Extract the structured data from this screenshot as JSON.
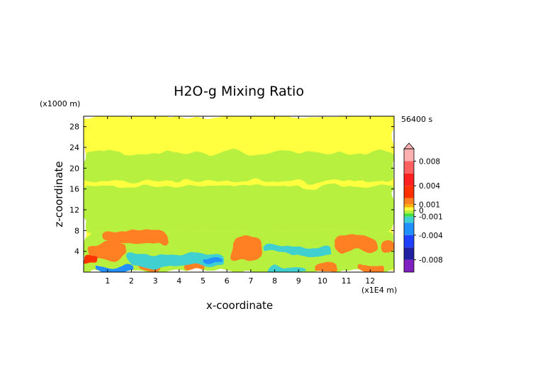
{
  "chart_data": {
    "type": "heatmap",
    "title": "H2O-g Mixing Ratio",
    "xlabel": "x-coordinate",
    "ylabel": "z-coordinate",
    "x_unit": "(x1E4 m)",
    "y_unit": "(x1000 m)",
    "time_label": "56400 s",
    "xlim": [
      0,
      13
    ],
    "ylim": [
      0,
      30
    ],
    "x_ticks": [
      "1",
      "2",
      "3",
      "4",
      "5",
      "6",
      "7",
      "8",
      "9",
      "10",
      "11",
      "12"
    ],
    "y_ticks": [
      "4",
      "8",
      "12",
      "16",
      "20",
      "24",
      "28"
    ],
    "colorbar": {
      "labels": [
        {
          "text": "0.008",
          "value": 0.008
        },
        {
          "text": "0.004",
          "value": 0.004
        },
        {
          "text": "0.001",
          "value": 0.001
        },
        {
          "text": "0",
          "value": 0.0
        },
        {
          "text": "-0.001",
          "value": -0.001
        },
        {
          "text": "-0.004",
          "value": -0.004
        },
        {
          "text": "-0.008",
          "value": -0.008
        }
      ],
      "range": [
        -0.01,
        0.01
      ],
      "stops": [
        {
          "value": 0.01,
          "color": "#ffb0b0"
        },
        {
          "value": 0.008,
          "color": "#ff6060"
        },
        {
          "value": 0.006,
          "color": "#ff2020"
        },
        {
          "value": 0.004,
          "color": "#ff3000"
        },
        {
          "value": 0.002,
          "color": "#ff8020"
        },
        {
          "value": 0.001,
          "color": "#ffb000"
        },
        {
          "value": 0.0005,
          "color": "#ffff40"
        },
        {
          "value": 0.0,
          "color": "#b8f040"
        },
        {
          "value": -0.0005,
          "color": "#40e040"
        },
        {
          "value": -0.001,
          "color": "#40d0d0"
        },
        {
          "value": -0.002,
          "color": "#2090ff"
        },
        {
          "value": -0.004,
          "color": "#2040ff"
        },
        {
          "value": -0.006,
          "color": "#2020a0"
        },
        {
          "value": -0.008,
          "color": "#8020c0"
        },
        {
          "value": -0.01,
          "color": "#ff20c0"
        }
      ]
    },
    "regions": [
      {
        "level": "near-zero-positive",
        "x": [
          0,
          13
        ],
        "z": [
          0,
          30
        ],
        "color": "#ffff40"
      },
      {
        "level": "slightly-negative",
        "x": [
          0,
          13
        ],
        "z": [
          17.5,
          23
        ],
        "color": "#b8f040"
      },
      {
        "level": "slightly-negative",
        "x": [
          0,
          13
        ],
        "z": [
          8,
          16.5
        ],
        "color": "#b8f040"
      },
      {
        "level": "slightly-negative",
        "x": [
          0,
          13
        ],
        "z": [
          0,
          8
        ],
        "color": "#b8f040"
      },
      {
        "level": "positive",
        "x": [
          0.8,
          3.6
        ],
        "z": [
          5.5,
          8
        ],
        "color": "#ff8020"
      },
      {
        "level": "positive",
        "x": [
          0.2,
          1.8
        ],
        "z": [
          2.5,
          5.5
        ],
        "color": "#ff8020"
      },
      {
        "level": "positive",
        "x": [
          6.2,
          7.4
        ],
        "z": [
          2.5,
          7
        ],
        "color": "#ff8020"
      },
      {
        "level": "positive",
        "x": [
          2.2,
          3.2
        ],
        "z": [
          0.3,
          3
        ],
        "color": "#ff8020"
      },
      {
        "level": "positive",
        "x": [
          10.6,
          12.2
        ],
        "z": [
          4,
          7
        ],
        "color": "#ff8020"
      },
      {
        "level": "positive",
        "x": [
          12.4,
          13
        ],
        "z": [
          3.5,
          6
        ],
        "color": "#ff8020"
      },
      {
        "level": "negative",
        "x": [
          1.8,
          5.9
        ],
        "z": [
          1,
          3.5
        ],
        "color": "#40d0d0"
      },
      {
        "level": "negative",
        "x": [
          7.5,
          10.4
        ],
        "z": [
          3.5,
          5
        ],
        "color": "#40d0d0"
      },
      {
        "level": "negative",
        "x": [
          0.5,
          2
        ],
        "z": [
          0,
          1.2
        ],
        "color": "#2090ff"
      },
      {
        "level": "negative",
        "x": [
          5,
          5.8
        ],
        "z": [
          1.8,
          2.8
        ],
        "color": "#2090ff"
      },
      {
        "level": "positive",
        "x": [
          0,
          0.6
        ],
        "z": [
          1.5,
          3
        ],
        "color": "#ff3000"
      },
      {
        "level": "positive",
        "x": [
          4.2,
          5.1
        ],
        "z": [
          0,
          1.2
        ],
        "color": "#ff8020"
      },
      {
        "level": "positive",
        "x": [
          9.6,
          10.6
        ],
        "z": [
          0,
          1.8
        ],
        "color": "#ff8020"
      },
      {
        "level": "positive",
        "x": [
          11.6,
          12.6
        ],
        "z": [
          0,
          1.5
        ],
        "color": "#ff8020"
      },
      {
        "level": "negative",
        "x": [
          7.8,
          9.2
        ],
        "z": [
          0,
          1
        ],
        "color": "#40d0d0"
      }
    ]
  }
}
